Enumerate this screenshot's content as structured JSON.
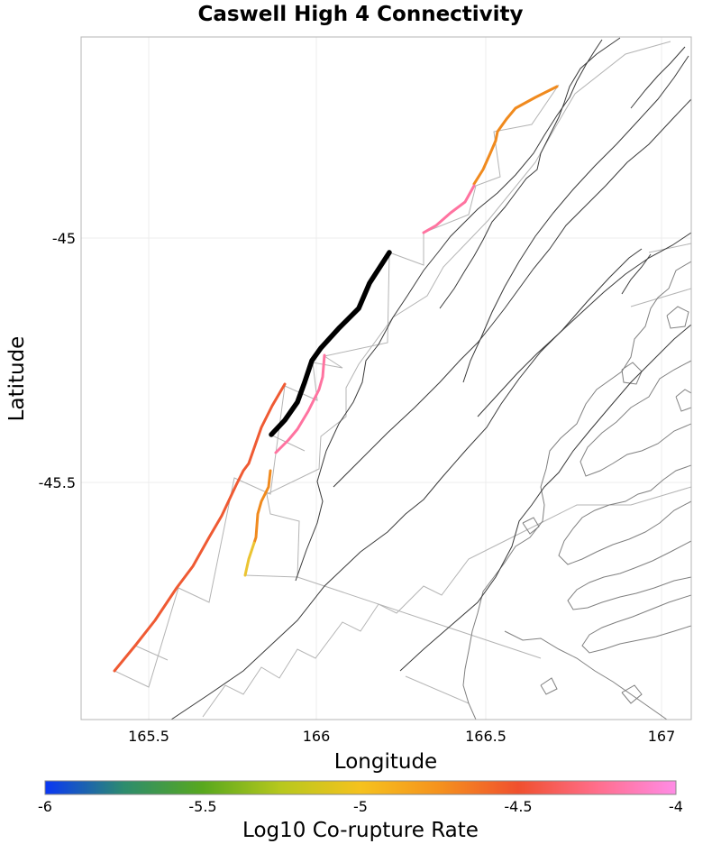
{
  "title": "Caswell High 4 Connectivity",
  "axes": {
    "xlabel": "Longitude",
    "ylabel": "Latitude",
    "xticks": [
      "165.5",
      "166",
      "166.5",
      "167"
    ],
    "yticks": [
      "-45",
      "-45.5"
    ],
    "xlim": [
      165.3,
      167.08
    ],
    "ylim": [
      -45.98,
      -44.59
    ]
  },
  "colorbar": {
    "label": "Log10 Co-rupture Rate",
    "ticks": [
      "-6",
      "-5.5",
      "-5",
      "-4.5",
      "-4"
    ],
    "range": [
      -6,
      -4
    ],
    "stops": [
      "#0a37f5",
      "#2d8c6e",
      "#58a81e",
      "#b8c81e",
      "#f5c21e",
      "#f5921e",
      "#f0502e",
      "#ff6e8c",
      "#ff8ce6"
    ]
  },
  "colors": {
    "target_rupture": "#000000",
    "fault_trace": "#3a3a3a",
    "subsection_outline": "#b4b4b4",
    "coastline": "#808080"
  },
  "chart_data": {
    "type": "map",
    "target_section": "Caswell High 4",
    "co_rupture_sections": [
      {
        "rate_log10": -4.5,
        "color": "#ef5a33"
      },
      {
        "rate_log10": -4.1,
        "color": "#ff73a0"
      },
      {
        "rate_log10": -4.7,
        "color": "#f08a1e"
      },
      {
        "rate_log10": -4.1,
        "color": "#ff73a0"
      },
      {
        "rate_log10": -4.8,
        "color": "#f08a1e"
      },
      {
        "rate_log10": -5.1,
        "color": "#ebc432"
      }
    ]
  }
}
